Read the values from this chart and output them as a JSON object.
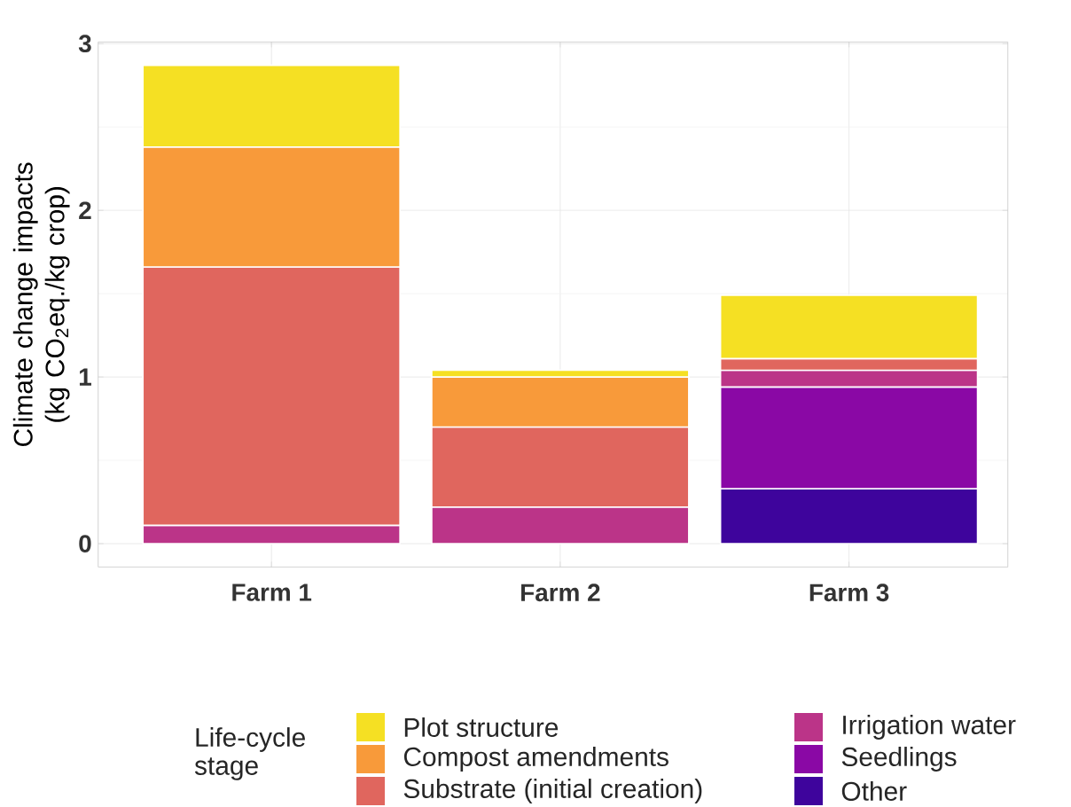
{
  "chart_data": {
    "type": "bar",
    "stacked": true,
    "ylabel": "Climate change impacts (kg CO$_{2}$eq./kg crop)",
    "legend_title": "Life-cycle stage",
    "categories": [
      "Farm 1",
      "Farm 2",
      "Farm 3"
    ],
    "series": [
      {
        "name": "Other",
        "color": "#3e049c",
        "values": [
          null,
          null,
          0.33
        ]
      },
      {
        "name": "Seedlings",
        "color": "#8a08a5",
        "values": [
          null,
          null,
          0.61
        ]
      },
      {
        "name": "Irrigation water",
        "color": "#bb3488",
        "values": [
          0.11,
          0.22,
          0.1
        ]
      },
      {
        "name": "Substrate (initial creation)",
        "color": "#e0665e",
        "values": [
          1.55,
          0.48,
          0.07
        ]
      },
      {
        "name": "Compost amendments",
        "color": "#f89a3a",
        "values": [
          0.72,
          0.3,
          null
        ]
      },
      {
        "name": "Plot structure",
        "color": "#f5e023",
        "values": [
          0.49,
          0.04,
          0.38
        ]
      }
    ],
    "ylim": [
      -0.14,
      3.01
    ],
    "yticks": [
      0,
      1,
      2,
      3
    ],
    "grid": true,
    "legend": "bottom"
  }
}
